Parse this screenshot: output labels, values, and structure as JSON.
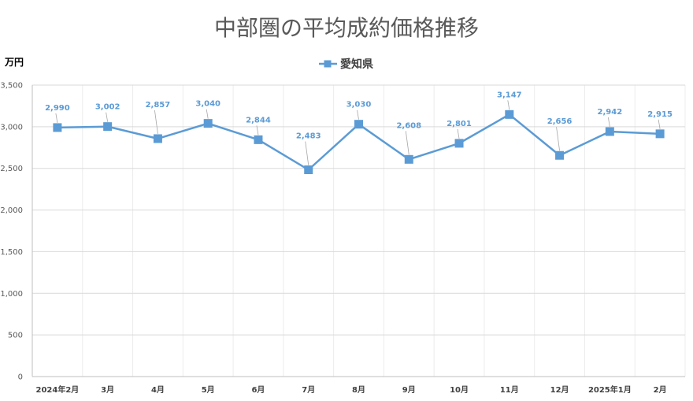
{
  "chart_data": {
    "type": "line",
    "title": "中部圏の平均成約価格推移",
    "ylabel": "万円",
    "xlabel": "",
    "ylim": [
      0,
      3500
    ],
    "ytick_step": 500,
    "y_tick_labels": [
      "0",
      "500",
      "1,000",
      "1,500",
      "2,000",
      "2,500",
      "3,000",
      "3,500"
    ],
    "categories": [
      "2024年2月",
      "3月",
      "4月",
      "5月",
      "6月",
      "7月",
      "8月",
      "9月",
      "10月",
      "11月",
      "12月",
      "2025年1月",
      "2月"
    ],
    "series": [
      {
        "name": "愛知県",
        "values": [
          2990,
          3002,
          2857,
          3040,
          2844,
          2483,
          3030,
          2608,
          2801,
          3147,
          2656,
          2942,
          2915
        ],
        "labels": [
          "2,990",
          "3,002",
          "2,857",
          "3,040",
          "2,844",
          "2,483",
          "3,030",
          "2,608",
          "2,801",
          "3,147",
          "2,656",
          "2,942",
          "2,915"
        ]
      }
    ],
    "grid": true,
    "legend": "top-center",
    "colors": {
      "series": "#5b9bd5",
      "grid": "#d9d9d9",
      "axis": "#bfbfbf"
    }
  }
}
